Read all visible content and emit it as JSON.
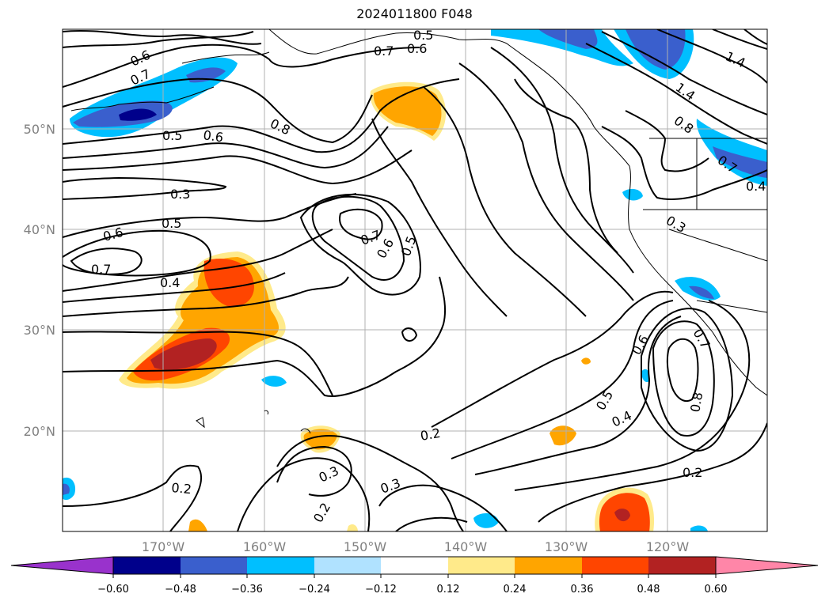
{
  "title": "2024011800 F048",
  "map": {
    "lon_ticks": [
      "170°W",
      "160°W",
      "150°W",
      "140°W",
      "130°W",
      "120°W"
    ],
    "lat_ticks": [
      "50°N",
      "40°N",
      "30°N",
      "20°N"
    ],
    "contour_labels": [
      "0.5",
      "0.7",
      "0.6",
      "0.6",
      "0.7",
      "0.8",
      "0.5",
      "0.6",
      "1.4",
      "1.4",
      "0.8",
      "0.7",
      "0.4",
      "0.3",
      "0.3",
      "0.5",
      "0.6",
      "0.7",
      "0.7",
      "0.6",
      "0.5",
      "0.4",
      "0.6",
      "0.7",
      "0.8",
      "0.5",
      "0.4",
      "0.2",
      "0.2",
      "0.3",
      "0.3",
      "0.2",
      "0.2"
    ]
  },
  "colorbar": {
    "ticks": [
      "−0.60",
      "−0.48",
      "−0.36",
      "−0.24",
      "−0.12",
      "0.12",
      "0.24",
      "0.36",
      "0.48",
      "0.60"
    ],
    "colors": [
      "#9932cc",
      "#00008b",
      "#3a5fcd",
      "#00bfff",
      "#b0e2ff",
      "#ffffff",
      "#ffea8a",
      "#ffa500",
      "#ff4500",
      "#b22222",
      "#ff86a8"
    ]
  }
}
